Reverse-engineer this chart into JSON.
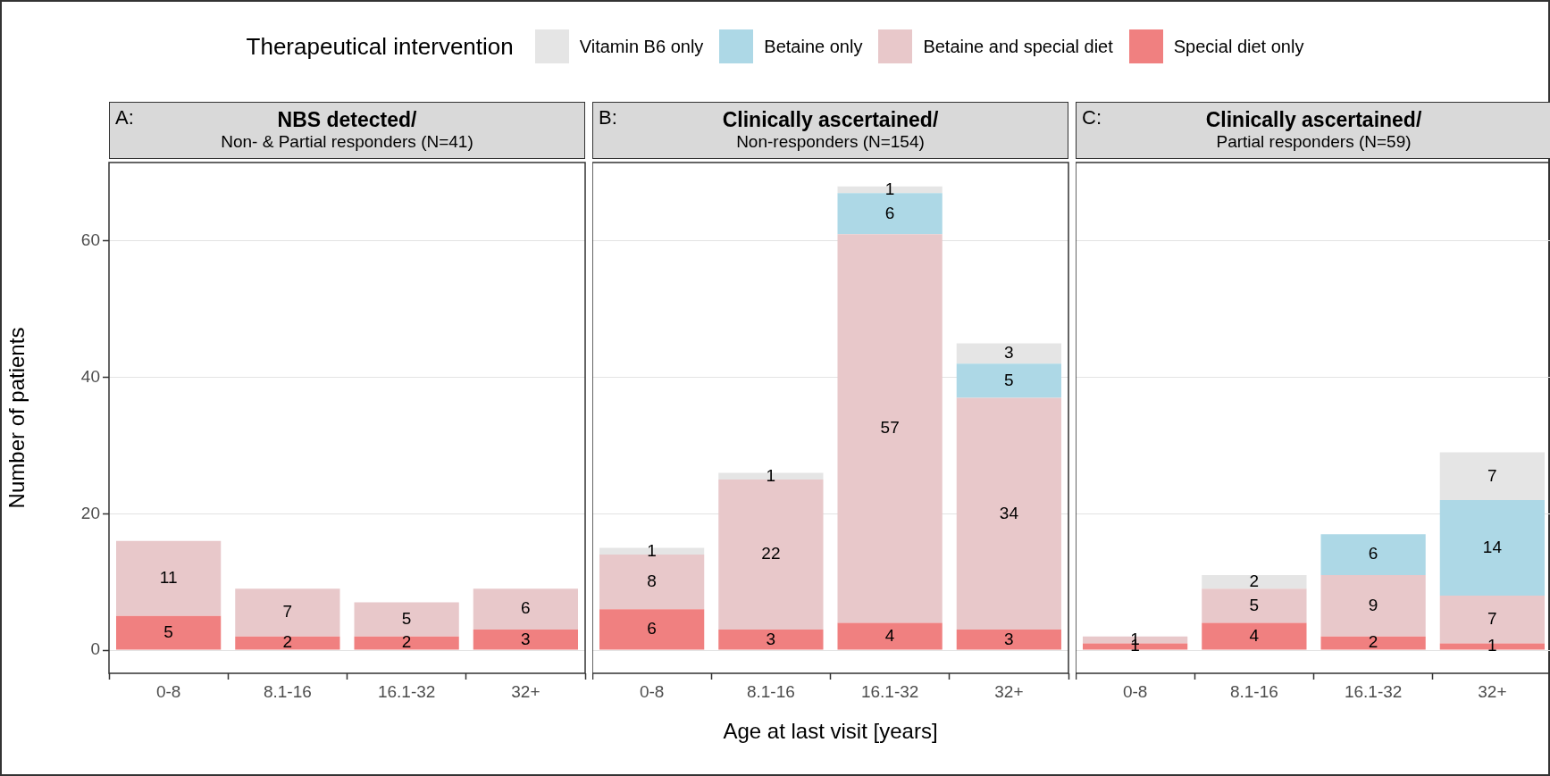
{
  "chart_data": [
    {
      "type": "bar",
      "title": "NBS detected/",
      "subtitle": "Non- & Partial responders (N=41)",
      "annotations": [
        "A:"
      ],
      "ylabel": "Number of patients",
      "legend_title": "Therapeutical intervention",
      "legend": "top",
      "stacked": true,
      "data_labels": true,
      "grid": "y",
      "categories": [
        "0-8",
        "8.1-16",
        "16.1-32",
        "32+"
      ],
      "ylim": [
        -3.4,
        71.5
      ],
      "yticks": [
        0,
        20,
        40,
        60
      ],
      "series": [
        {
          "name": "Special diet only",
          "color": "#f08080",
          "values": [
            5,
            2,
            2,
            3
          ]
        },
        {
          "name": "Betaine and special diet",
          "color": "#e8c8ca",
          "values": [
            11,
            7,
            5,
            6
          ]
        },
        {
          "name": "Betaine only",
          "color": "#add8e6",
          "values": [
            null,
            null,
            null,
            null
          ]
        },
        {
          "name": "Vitamin B6 only",
          "color": "#e5e5e5",
          "values": [
            null,
            null,
            null,
            null
          ]
        }
      ]
    },
    {
      "type": "bar",
      "title": "Clinically ascertained/",
      "subtitle": "Non-responders (N=154)",
      "annotations": [
        "B:"
      ],
      "xlabel": "Age at last visit [years]",
      "stacked": true,
      "data_labels": true,
      "grid": "y",
      "tick_labels": "x",
      "categories": [
        "0-8",
        "8.1-16",
        "16.1-32",
        "32+"
      ],
      "ylim": [
        -3.4,
        71.5
      ],
      "yticks": [
        0,
        20,
        40,
        60
      ],
      "series": [
        {
          "color": "#f08080",
          "values": [
            6,
            3,
            4,
            3
          ]
        },
        {
          "color": "#e8c8ca",
          "values": [
            8,
            22,
            57,
            34
          ]
        },
        {
          "color": "#add8e6",
          "values": [
            null,
            null,
            6,
            5
          ]
        },
        {
          "color": "#e5e5e5",
          "values": [
            1,
            1,
            1,
            3
          ]
        }
      ]
    },
    {
      "type": "bar",
      "title": "Clinically ascertained/",
      "subtitle": "Partial responders (N=59)",
      "annotations": [
        "C:"
      ],
      "stacked": true,
      "data_labels": true,
      "grid": "y",
      "tick_labels": "x",
      "categories": [
        "0-8",
        "8.1-16",
        "16.1-32",
        "32+"
      ],
      "ylim": [
        -3.4,
        71.5
      ],
      "yticks": [
        0,
        20,
        40,
        60
      ],
      "series": [
        {
          "color": "#f08080",
          "values": [
            1,
            4,
            2,
            1
          ]
        },
        {
          "color": "#e8c8ca",
          "values": [
            1,
            5,
            9,
            7
          ]
        },
        {
          "color": "#add8e6",
          "values": [
            null,
            null,
            6,
            14
          ]
        },
        {
          "color": "#e5e5e5",
          "values": [
            null,
            2,
            null,
            7
          ]
        }
      ]
    }
  ]
}
